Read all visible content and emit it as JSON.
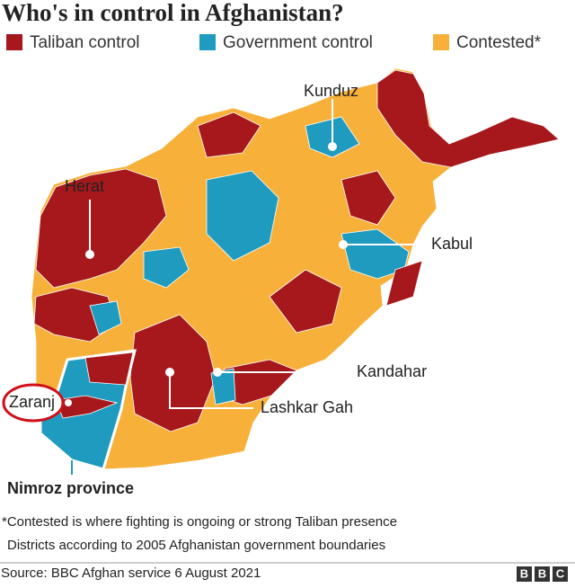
{
  "header": {
    "title": "Who's in control in Afghanistan?"
  },
  "legend": [
    {
      "label": "Taliban control",
      "color": "#a6181b"
    },
    {
      "label": "Government control",
      "color": "#1f9bbf"
    },
    {
      "label": "Contested*",
      "color": "#f7b13a"
    }
  ],
  "map": {
    "places": [
      {
        "label": "Kunduz"
      },
      {
        "label": "Herat"
      },
      {
        "label": "Kabul"
      },
      {
        "label": "Kandahar"
      },
      {
        "label": "Lashkar Gah"
      },
      {
        "label": "Zaranj"
      }
    ],
    "province": "Nimroz province"
  },
  "footer": {
    "notes": [
      "*Contested is where fighting is ongoing or strong Taliban presence",
      "Districts according to 2005 Afghanistan government boundaries"
    ],
    "source": "Source: BBC Afghan service 6 August 2021",
    "logo": [
      "B",
      "B",
      "C"
    ]
  }
}
